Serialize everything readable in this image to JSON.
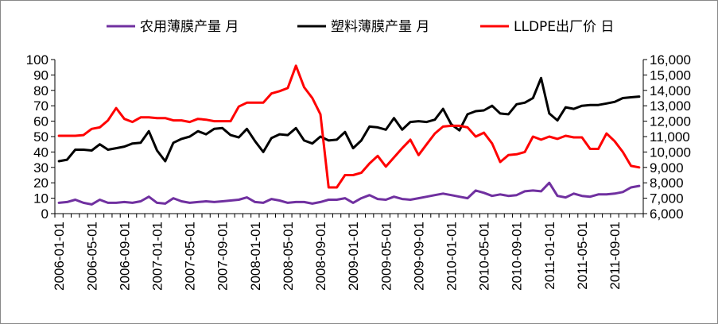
{
  "chart_data": {
    "type": "line",
    "legend_position": "top",
    "grid": false,
    "x": [
      "2006-01-01",
      "2006-02-01",
      "2006-03-01",
      "2006-04-01",
      "2006-05-01",
      "2006-06-01",
      "2006-07-01",
      "2006-08-01",
      "2006-09-01",
      "2006-10-01",
      "2006-11-01",
      "2006-12-01",
      "2007-01-01",
      "2007-02-01",
      "2007-03-01",
      "2007-04-01",
      "2007-05-01",
      "2007-06-01",
      "2007-07-01",
      "2007-08-01",
      "2007-09-01",
      "2007-10-01",
      "2007-11-01",
      "2007-12-01",
      "2008-01-01",
      "2008-02-01",
      "2008-03-01",
      "2008-04-01",
      "2008-05-01",
      "2008-06-01",
      "2008-07-01",
      "2008-08-01",
      "2008-09-01",
      "2008-10-01",
      "2008-11-01",
      "2008-12-01",
      "2009-01-01",
      "2009-02-01",
      "2009-03-01",
      "2009-04-01",
      "2009-05-01",
      "2009-06-01",
      "2009-07-01",
      "2009-08-01",
      "2009-09-01",
      "2009-10-01",
      "2009-11-01",
      "2009-12-01",
      "2010-01-01",
      "2010-02-01",
      "2010-03-01",
      "2010-04-01",
      "2010-05-01",
      "2010-06-01",
      "2010-07-01",
      "2010-08-01",
      "2010-09-01",
      "2010-10-01",
      "2010-11-01",
      "2010-12-01",
      "2011-01-01",
      "2011-02-01",
      "2011-03-01",
      "2011-04-01",
      "2011-05-01",
      "2011-06-01",
      "2011-07-01",
      "2011-08-01",
      "2011-09-01",
      "2011-10-01",
      "2011-11-01",
      "2011-12-01"
    ],
    "x_tick_labels": [
      "2006-01-01",
      "2006-05-01",
      "2006-09-01",
      "2007-01-01",
      "2007-05-01",
      "2007-09-01",
      "2008-01-01",
      "2008-05-01",
      "2008-09-01",
      "2009-01-01",
      "2009-05-01",
      "2009-09-01",
      "2010-01-01",
      "2010-05-01",
      "2010-09-01",
      "2011-01-01",
      "2011-05-01",
      "2011-09-01"
    ],
    "y_left": {
      "ylim": [
        0,
        100
      ],
      "ticks": [
        "0",
        "10",
        "20",
        "30",
        "40",
        "50",
        "60",
        "70",
        "80",
        "90",
        "100"
      ]
    },
    "y_right": {
      "ylim": [
        6000,
        16000
      ],
      "ticks": [
        "6,000",
        "7,000",
        "8,000",
        "9,000",
        "10,000",
        "11,000",
        "12,000",
        "13,000",
        "14,000",
        "15,000",
        "16,000"
      ]
    },
    "series": [
      {
        "name": "农用薄膜产量 月",
        "axis": "left",
        "color": "#7030A0",
        "values": [
          7,
          7.5,
          9,
          7,
          6,
          9,
          7,
          7,
          7.5,
          7,
          8,
          11,
          7,
          6.5,
          10,
          8,
          7,
          7.5,
          8,
          7.5,
          8,
          8.5,
          9,
          10.5,
          7.5,
          7,
          9.5,
          8.5,
          7,
          7.5,
          7.5,
          6.5,
          7.5,
          9,
          9,
          10,
          7,
          10,
          12,
          9.5,
          9,
          11,
          9.5,
          9,
          10,
          11,
          12,
          13,
          12,
          11,
          10,
          15,
          13.5,
          11.5,
          12.5,
          11.5,
          12,
          14.5,
          15,
          14.5,
          20,
          11.5,
          10.5,
          13,
          11.5,
          11,
          12.5,
          12.5,
          13,
          14,
          17,
          18
        ]
      },
      {
        "name": "塑料薄膜产量 月",
        "axis": "left",
        "color": "#000000",
        "values": [
          34,
          35,
          41.5,
          41.5,
          41,
          45,
          41.5,
          42.5,
          43.5,
          45.5,
          46,
          53.5,
          41,
          34,
          46,
          48.5,
          50,
          53.5,
          51.5,
          55,
          55.5,
          51,
          49.5,
          55,
          47,
          40,
          49,
          51.5,
          51,
          55.5,
          47.5,
          45.5,
          50,
          47.5,
          48,
          53,
          42.5,
          47.5,
          56.5,
          56,
          54.5,
          62,
          54.5,
          59.5,
          60,
          59.5,
          61,
          68,
          58,
          54,
          64.5,
          66.5,
          67,
          70,
          65,
          64.5,
          71,
          72,
          75,
          88,
          65,
          60.5,
          69,
          68,
          70,
          70.5,
          70.5,
          71.5,
          72.5,
          75,
          75.5,
          76
        ]
      },
      {
        "name": "LLDPE出厂价 日",
        "axis": "right",
        "color": "#FF0000",
        "values": [
          11050,
          11050,
          11050,
          11100,
          11500,
          11600,
          12050,
          12850,
          12150,
          11950,
          12250,
          12250,
          12200,
          12200,
          12050,
          12050,
          11950,
          12150,
          12100,
          12000,
          12000,
          12000,
          12950,
          13200,
          13200,
          13200,
          13800,
          13950,
          14150,
          15600,
          14200,
          13500,
          12450,
          7700,
          7700,
          8500,
          8500,
          8650,
          9250,
          9750,
          9050,
          9650,
          10250,
          10800,
          9800,
          10500,
          11200,
          11650,
          11700,
          11700,
          11600,
          11000,
          11250,
          10550,
          9350,
          9800,
          9850,
          10000,
          11000,
          10800,
          11000,
          10850,
          11050,
          10950,
          10950,
          10200,
          10200,
          11200,
          10700,
          10000,
          9100,
          9000
        ]
      }
    ]
  }
}
